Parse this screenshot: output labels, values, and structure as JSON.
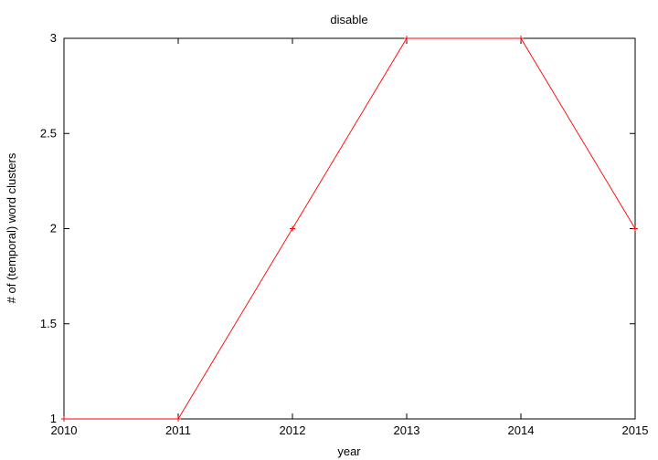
{
  "chart_data": {
    "type": "line",
    "title": "disable",
    "xlabel": "year",
    "ylabel": "# of (temporal) word clusters",
    "x": [
      2010,
      2011,
      2012,
      2013,
      2014,
      2015
    ],
    "series": [
      {
        "values": [
          1,
          1,
          2,
          3,
          3,
          2
        ],
        "color": "#ff0000"
      }
    ],
    "xlim": [
      2010,
      2015
    ],
    "ylim": [
      1,
      3
    ],
    "xticks": [
      "2010",
      "2011",
      "2012",
      "2013",
      "2014",
      "2015"
    ],
    "yticks": [
      "1",
      "1.5",
      "2",
      "2.5",
      "3"
    ],
    "grid": false
  }
}
